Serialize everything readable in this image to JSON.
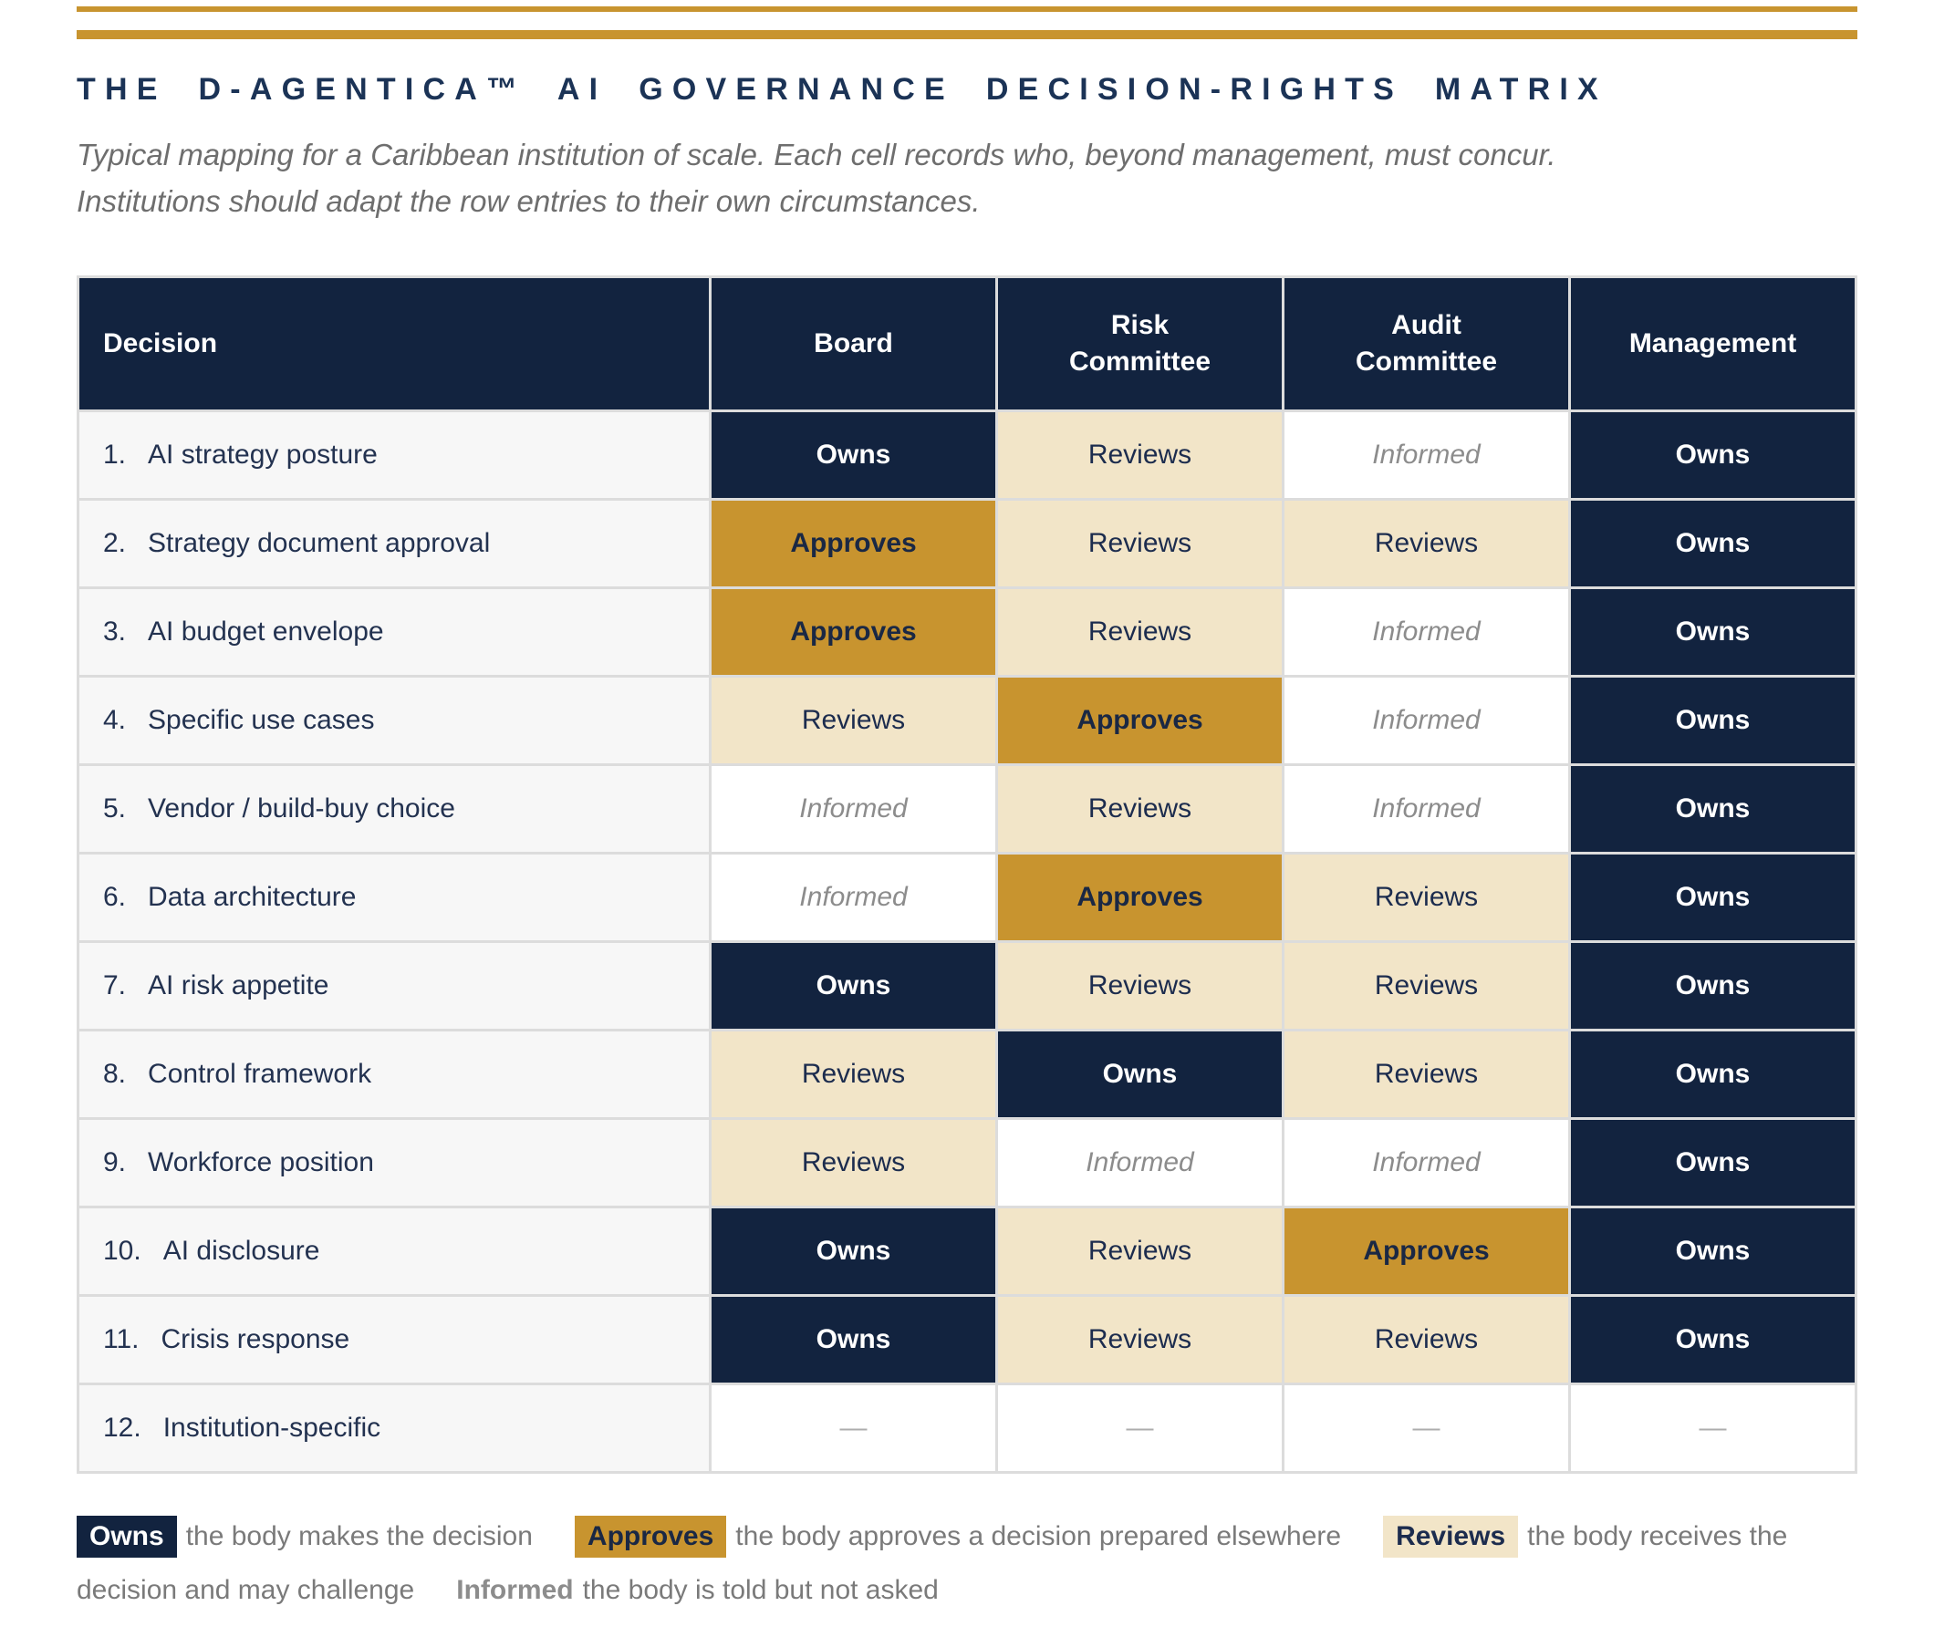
{
  "colors": {
    "navy": "#12233F",
    "gold": "#C8942F",
    "cream": "#F2E5C8",
    "label_bg": "#F7F7F7",
    "informed_text": "#8C8C8C"
  },
  "header": {
    "title": "THE D-AGENTICA™ AI GOVERNANCE DECISION-RIGHTS MATRIX",
    "subtitle": "Typical mapping for a Caribbean institution of scale. Each cell records who, beyond management, must concur.\nInstitutions should adapt the row entries to their own circumstances."
  },
  "table": {
    "columns": [
      "Decision",
      "Board",
      "Risk\nCommittee",
      "Audit\nCommittee",
      "Management"
    ],
    "rows": [
      {
        "num": "1.",
        "label": "AI strategy posture",
        "cells": [
          {
            "text": "Owns",
            "type": "owns"
          },
          {
            "text": "Reviews",
            "type": "reviews"
          },
          {
            "text": "Informed",
            "type": "informed"
          },
          {
            "text": "Owns",
            "type": "owns"
          }
        ]
      },
      {
        "num": "2.",
        "label": "Strategy document approval",
        "cells": [
          {
            "text": "Approves",
            "type": "approves"
          },
          {
            "text": "Reviews",
            "type": "reviews"
          },
          {
            "text": "Reviews",
            "type": "reviews"
          },
          {
            "text": "Owns",
            "type": "owns"
          }
        ]
      },
      {
        "num": "3.",
        "label": "AI budget envelope",
        "cells": [
          {
            "text": "Approves",
            "type": "approves"
          },
          {
            "text": "Reviews",
            "type": "reviews"
          },
          {
            "text": "Informed",
            "type": "informed"
          },
          {
            "text": "Owns",
            "type": "owns"
          }
        ]
      },
      {
        "num": "4.",
        "label": "Specific use cases",
        "cells": [
          {
            "text": "Reviews",
            "type": "reviews"
          },
          {
            "text": "Approves",
            "type": "approves"
          },
          {
            "text": "Informed",
            "type": "informed"
          },
          {
            "text": "Owns",
            "type": "owns"
          }
        ]
      },
      {
        "num": "5.",
        "label": "Vendor / build-buy choice",
        "cells": [
          {
            "text": "Informed",
            "type": "informed"
          },
          {
            "text": "Reviews",
            "type": "reviews"
          },
          {
            "text": "Informed",
            "type": "informed"
          },
          {
            "text": "Owns",
            "type": "owns"
          }
        ]
      },
      {
        "num": "6.",
        "label": "Data architecture",
        "cells": [
          {
            "text": "Informed",
            "type": "informed"
          },
          {
            "text": "Approves",
            "type": "approves"
          },
          {
            "text": "Reviews",
            "type": "reviews"
          },
          {
            "text": "Owns",
            "type": "owns"
          }
        ]
      },
      {
        "num": "7.",
        "label": "AI risk appetite",
        "cells": [
          {
            "text": "Owns",
            "type": "owns"
          },
          {
            "text": "Reviews",
            "type": "reviews"
          },
          {
            "text": "Reviews",
            "type": "reviews"
          },
          {
            "text": "Owns",
            "type": "owns"
          }
        ]
      },
      {
        "num": "8.",
        "label": "Control framework",
        "cells": [
          {
            "text": "Reviews",
            "type": "reviews"
          },
          {
            "text": "Owns",
            "type": "owns"
          },
          {
            "text": "Reviews",
            "type": "reviews"
          },
          {
            "text": "Owns",
            "type": "owns"
          }
        ]
      },
      {
        "num": "9.",
        "label": "Workforce position",
        "cells": [
          {
            "text": "Reviews",
            "type": "reviews"
          },
          {
            "text": "Informed",
            "type": "informed"
          },
          {
            "text": "Informed",
            "type": "informed"
          },
          {
            "text": "Owns",
            "type": "owns"
          }
        ]
      },
      {
        "num": "10.",
        "label": "AI disclosure",
        "cells": [
          {
            "text": "Owns",
            "type": "owns"
          },
          {
            "text": "Reviews",
            "type": "reviews"
          },
          {
            "text": "Approves",
            "type": "approves"
          },
          {
            "text": "Owns",
            "type": "owns"
          }
        ]
      },
      {
        "num": "11.",
        "label": "Crisis response",
        "cells": [
          {
            "text": "Owns",
            "type": "owns"
          },
          {
            "text": "Reviews",
            "type": "reviews"
          },
          {
            "text": "Reviews",
            "type": "reviews"
          },
          {
            "text": "Owns",
            "type": "owns"
          }
        ]
      },
      {
        "num": "12.",
        "label": "Institution-specific",
        "cells": [
          {
            "text": "—",
            "type": "dash"
          },
          {
            "text": "—",
            "type": "dash"
          },
          {
            "text": "—",
            "type": "dash"
          },
          {
            "text": "—",
            "type": "dash"
          }
        ]
      }
    ]
  },
  "legend": {
    "items": [
      {
        "term": "Owns",
        "type": "owns",
        "desc": "the body makes the decision"
      },
      {
        "term": "Approves",
        "type": "approves",
        "desc": "the body approves a decision prepared elsewhere"
      },
      {
        "term": "Reviews",
        "type": "reviews",
        "desc": "the body receives the decision and may challenge"
      },
      {
        "term": "Informed",
        "type": "informed",
        "desc": "the body is told but not asked"
      }
    ]
  }
}
